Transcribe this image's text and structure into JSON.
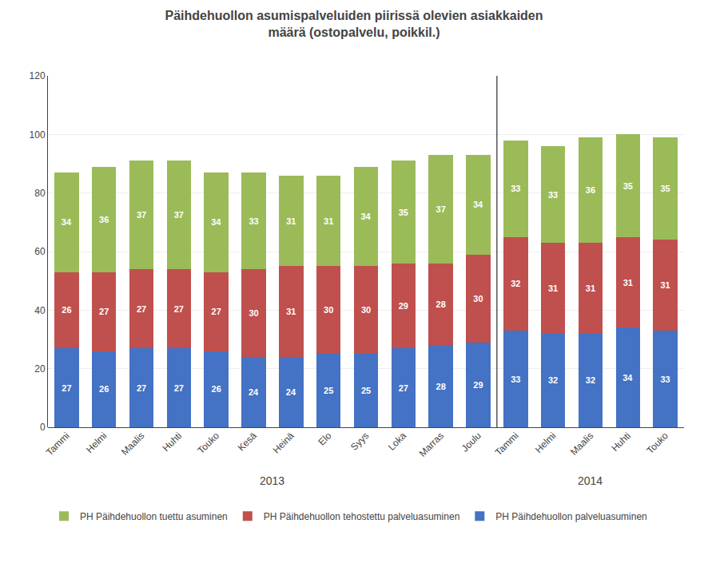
{
  "chart_data": {
    "type": "bar",
    "stacked": true,
    "title": "Päihdehuollon asumispalveluiden piirissä olevien asiakkaiden\nmäärä (ostopalvelu, poikkil.)",
    "categories": [
      "Tammi",
      "Helmi",
      "Maalis",
      "Huhti",
      "Touko",
      "Kesä",
      "Heinä",
      "Elo",
      "Syys",
      "Loka",
      "Marras",
      "Joulu",
      "Tammi",
      "Helmi",
      "Maalis",
      "Huhti",
      "Touko"
    ],
    "series": [
      {
        "name": "PH Päihdehuollon palveluasuminen",
        "color": "#4472C4",
        "values": [
          27,
          26,
          27,
          27,
          26,
          24,
          24,
          25,
          25,
          27,
          28,
          29,
          33,
          32,
          32,
          34,
          33
        ]
      },
      {
        "name": "PH Päihdehuollon tehostettu palveluasuminen",
        "color": "#C0504D",
        "values": [
          26,
          27,
          27,
          27,
          27,
          30,
          31,
          30,
          30,
          29,
          28,
          30,
          32,
          31,
          31,
          31,
          31
        ]
      },
      {
        "name": "PH Päihdehuollon tuettu asuminen",
        "color": "#9BBB59",
        "values": [
          34,
          36,
          37,
          37,
          34,
          33,
          31,
          31,
          34,
          35,
          37,
          34,
          33,
          33,
          36,
          35,
          35
        ]
      }
    ],
    "ylim": [
      0,
      120
    ],
    "yticks": [
      0,
      20,
      40,
      60,
      80,
      100,
      120
    ],
    "grid": true,
    "legend": "bottom",
    "data_labels": true,
    "annotations": [
      {
        "text": "2013",
        "x": 5.5
      },
      {
        "text": "2014",
        "x": 14.0
      }
    ],
    "vlines": [
      11.5
    ]
  }
}
